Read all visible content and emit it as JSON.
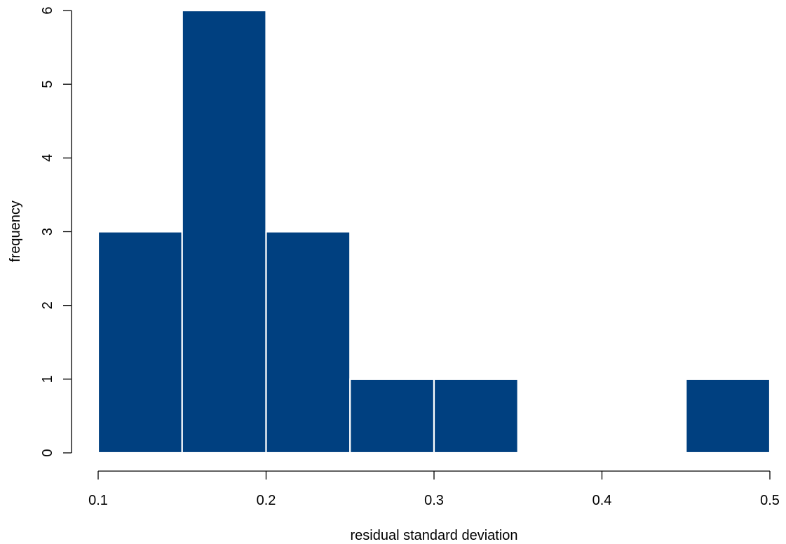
{
  "chart_data": {
    "type": "bar",
    "subtype": "histogram",
    "bins": [
      {
        "start": 0.1,
        "end": 0.15,
        "count": 3
      },
      {
        "start": 0.15,
        "end": 0.2,
        "count": 6
      },
      {
        "start": 0.2,
        "end": 0.25,
        "count": 3
      },
      {
        "start": 0.25,
        "end": 0.3,
        "count": 1
      },
      {
        "start": 0.3,
        "end": 0.35,
        "count": 1
      },
      {
        "start": 0.35,
        "end": 0.4,
        "count": 0
      },
      {
        "start": 0.4,
        "end": 0.45,
        "count": 0
      },
      {
        "start": 0.45,
        "end": 0.5,
        "count": 1
      }
    ],
    "title": "",
    "xlabel": "residual standard deviation",
    "ylabel": "frequency",
    "xlim": [
      0.1,
      0.5
    ],
    "ylim": [
      0,
      6
    ],
    "x_ticks": [
      "0.1",
      "0.2",
      "0.3",
      "0.4",
      "0.5"
    ],
    "y_ticks": [
      "0",
      "1",
      "2",
      "3",
      "4",
      "5",
      "6"
    ],
    "grid": false,
    "legend": "none",
    "colors": {
      "bar_fill": "#004080",
      "bar_border": "#ffffff",
      "axis": "#000000"
    }
  }
}
